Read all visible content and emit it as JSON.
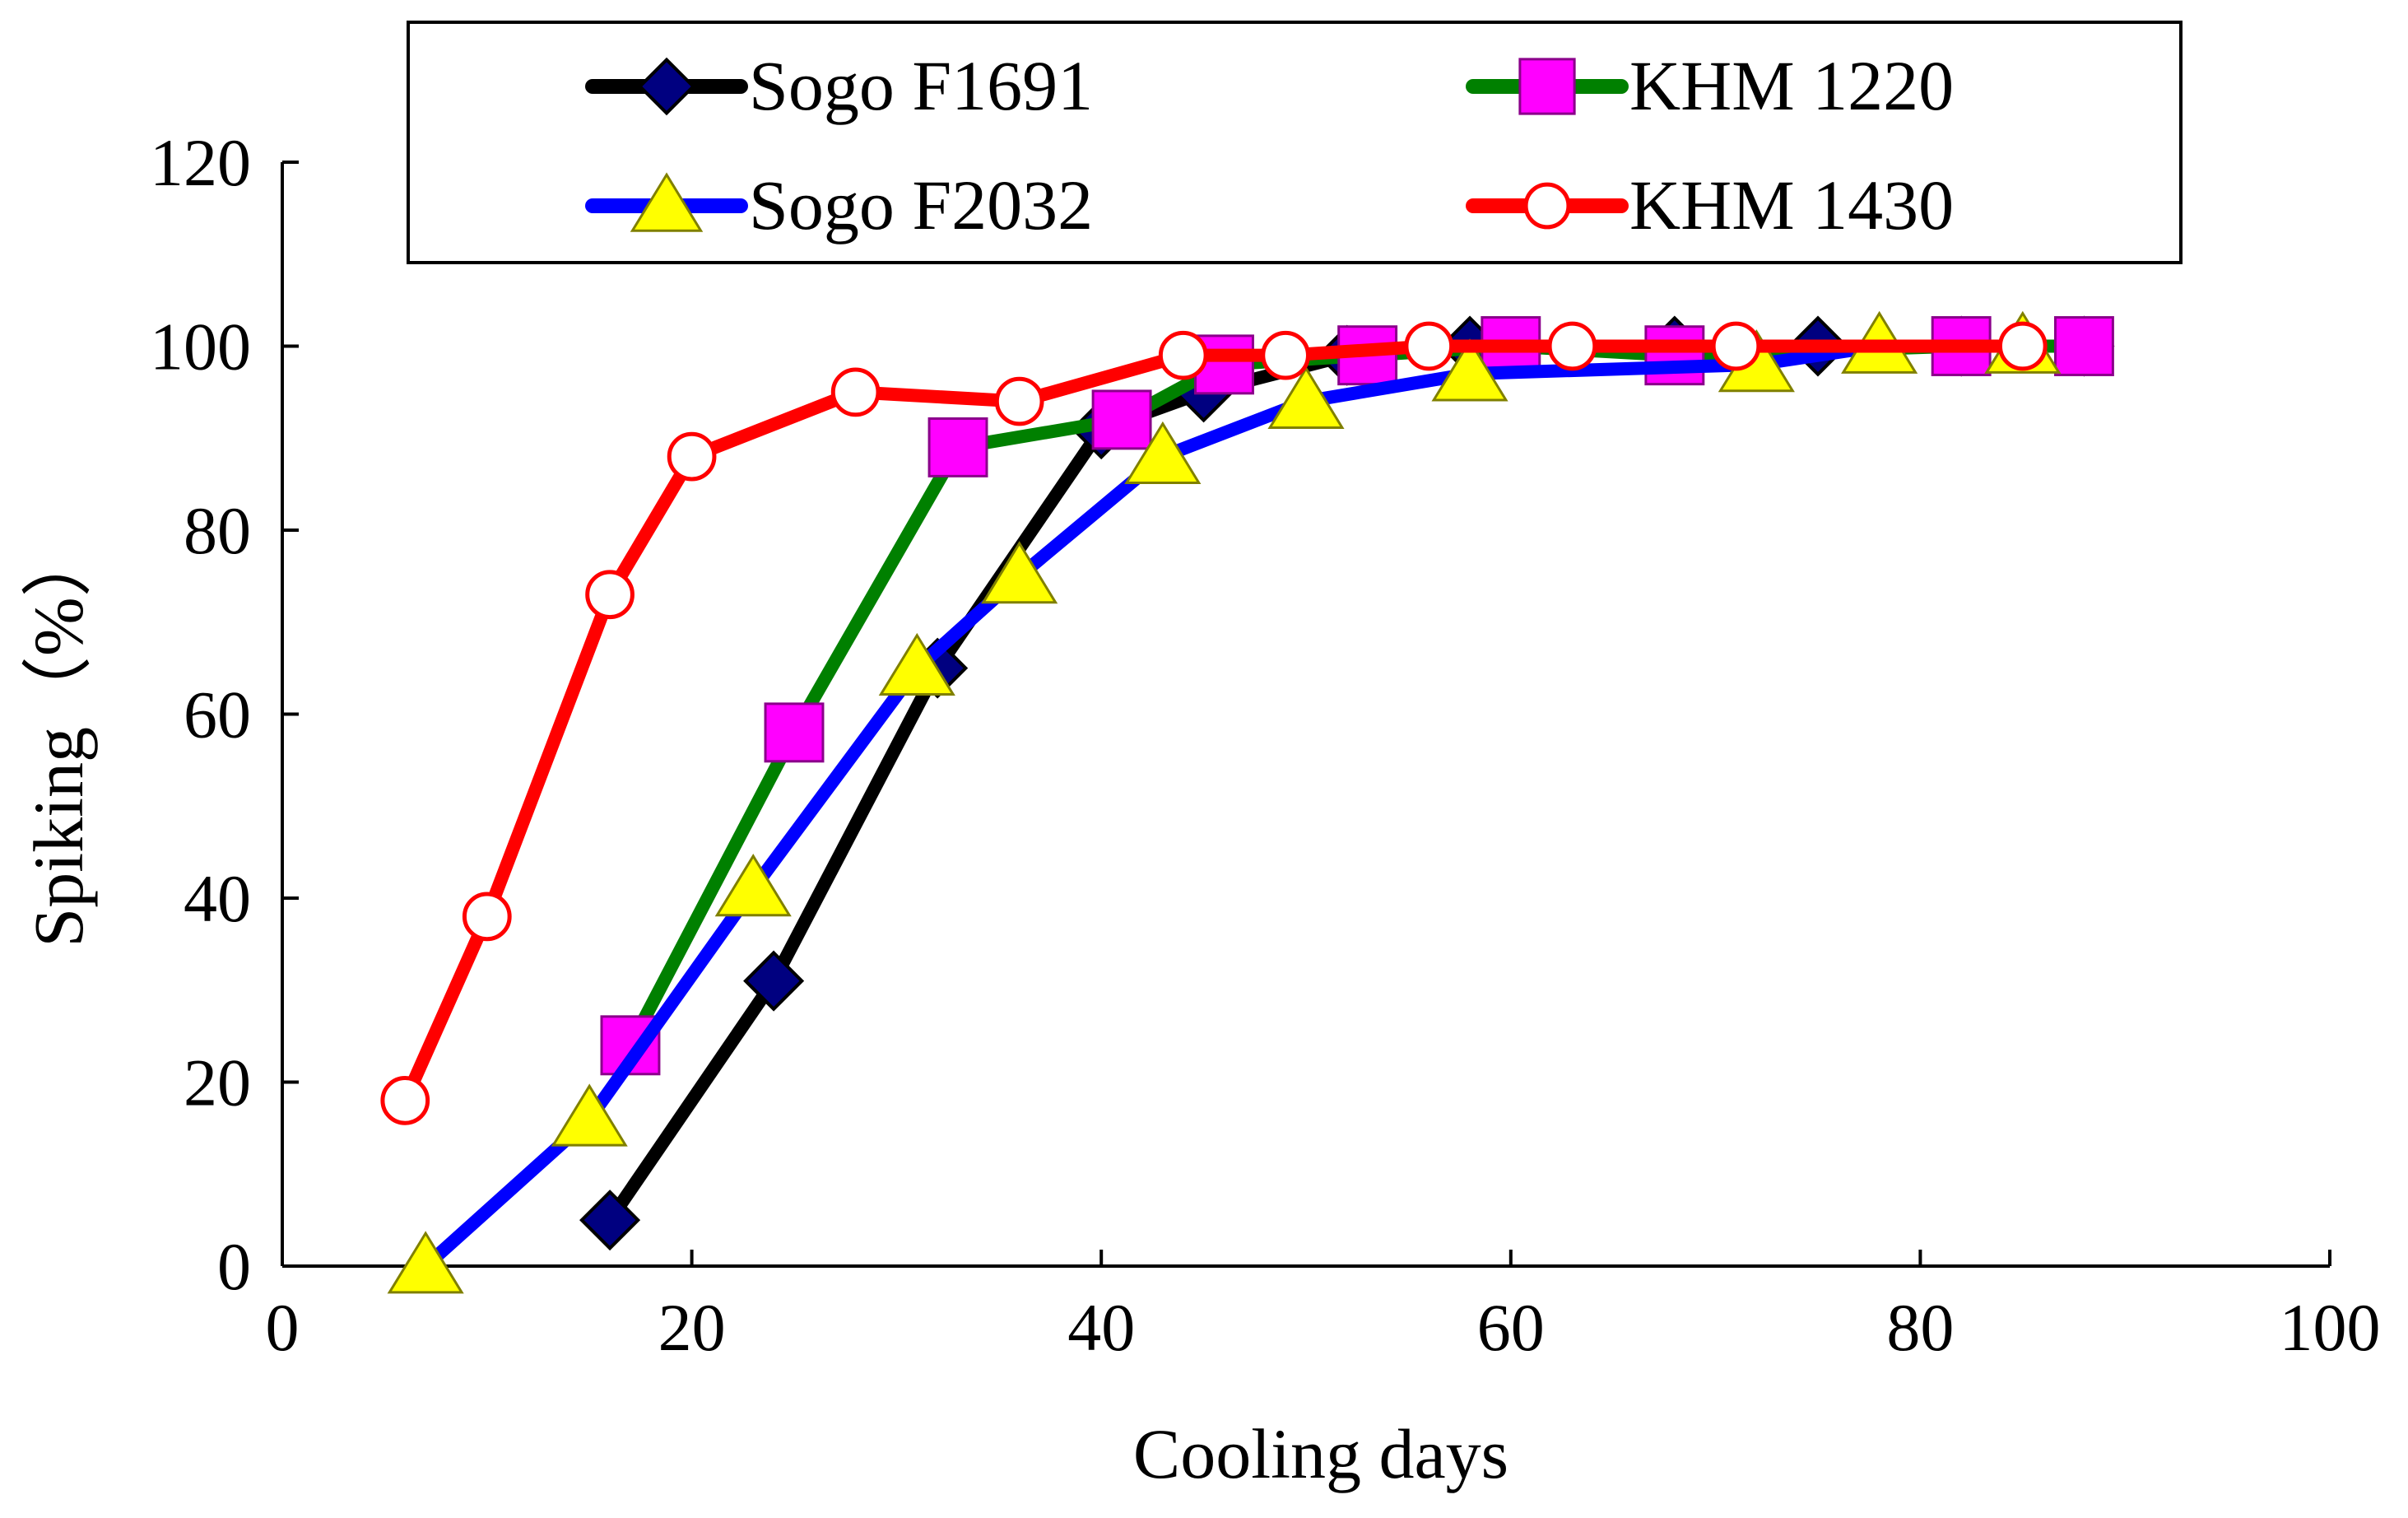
{
  "chart_data": {
    "type": "line",
    "title": "",
    "xlabel": "Cooling days",
    "ylabel": "Spiking（%）",
    "xlim": [
      0,
      100
    ],
    "ylim": [
      0,
      120
    ],
    "xticks": [
      0,
      20,
      40,
      60,
      80,
      100
    ],
    "yticks": [
      0,
      20,
      40,
      60,
      80,
      100,
      120
    ],
    "xtick_labels": [
      "0",
      "20",
      "40",
      "60",
      "80",
      "100"
    ],
    "ytick_labels": [
      "0",
      "20",
      "40",
      "60",
      "80",
      "100",
      "120"
    ],
    "grid": false,
    "legend_position": "top",
    "series": [
      {
        "name": "Sogo F1691",
        "line_color": "#000000",
        "marker": "diamond",
        "marker_fill": "#000080",
        "marker_stroke": "#000000",
        "points": [
          [
            16,
            5
          ],
          [
            24,
            31
          ],
          [
            32,
            65
          ],
          [
            40,
            91
          ],
          [
            45,
            95
          ],
          [
            52,
            99
          ],
          [
            58,
            100
          ],
          [
            68,
            100
          ],
          [
            75,
            100
          ],
          [
            82,
            100
          ],
          [
            88,
            100
          ]
        ]
      },
      {
        "name": "KHM 1220",
        "line_color": "#008000",
        "marker": "square",
        "marker_fill": "#FF00FF",
        "marker_stroke": "#8B008B",
        "points": [
          [
            17,
            24
          ],
          [
            25,
            58
          ],
          [
            33,
            89
          ],
          [
            41,
            92
          ],
          [
            46,
            98
          ],
          [
            53,
            99
          ],
          [
            60,
            100
          ],
          [
            68,
            99
          ],
          [
            82,
            100
          ],
          [
            88,
            100
          ]
        ]
      },
      {
        "name": "Sogo F2032",
        "line_color": "#0000FF",
        "marker": "triangle",
        "marker_fill": "#FFFF00",
        "marker_stroke": "#808000",
        "points": [
          [
            7,
            0
          ],
          [
            15,
            16
          ],
          [
            23,
            41
          ],
          [
            31,
            65
          ],
          [
            36,
            75
          ],
          [
            43,
            88
          ],
          [
            50,
            94
          ],
          [
            58,
            97
          ],
          [
            72,
            98
          ],
          [
            78,
            100
          ],
          [
            85,
            100
          ]
        ]
      },
      {
        "name": "KHM 1430",
        "line_color": "#FF0000",
        "marker": "circle-open",
        "marker_fill": "#FFFFFF",
        "marker_stroke": "#FF0000",
        "points": [
          [
            6,
            18
          ],
          [
            10,
            38
          ],
          [
            16,
            73
          ],
          [
            20,
            88
          ],
          [
            28,
            95
          ],
          [
            36,
            94
          ],
          [
            44,
            99
          ],
          [
            49,
            99
          ],
          [
            56,
            100
          ],
          [
            63,
            100
          ],
          [
            71,
            100
          ],
          [
            85,
            100
          ]
        ]
      }
    ]
  }
}
